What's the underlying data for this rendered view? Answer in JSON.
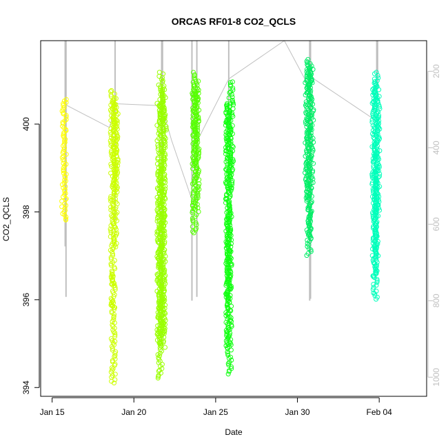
{
  "chart_data": {
    "type": "scatter",
    "title": "ORCAS RF01-8 CO2_QCLS",
    "xlabel": "Date",
    "ylabel": "CO2_QCLS",
    "x_ticks": [
      {
        "day": 15.0,
        "label": "Jan 15"
      },
      {
        "day": 20.0,
        "label": "Jan 20"
      },
      {
        "day": 25.0,
        "label": "Jan 25"
      },
      {
        "day": 30.0,
        "label": "Jan 30"
      },
      {
        "day": 35.0,
        "label": "Feb 04"
      }
    ],
    "xlim_day": [
      14.3,
      37.9
    ],
    "ylim": [
      393.8,
      401.9
    ],
    "y_ticks": [
      394,
      396,
      398,
      400
    ],
    "right_axis": {
      "color": "#bfbfbf",
      "ticks": [
        200,
        400,
        600,
        800,
        1000
      ],
      "ylim": [
        1050,
        120
      ],
      "reversed": true
    },
    "grid": false,
    "legend": "none",
    "series": [
      {
        "color": "#ffff00",
        "values": [
          [
            15.75,
            398.3,
            400.6
          ],
          [
            15.72,
            397.8,
            398.3
          ]
        ]
      },
      {
        "color": "#ccff00",
        "values": [
          [
            18.7,
            396.3,
            400.8
          ],
          [
            18.73,
            395.8,
            396.6
          ],
          [
            18.75,
            394.1,
            396.0
          ],
          [
            18.85,
            397.2,
            400.6
          ],
          [
            18.9,
            398.5,
            400.5
          ]
        ]
      },
      {
        "color": "#99ff00",
        "values": [
          [
            21.55,
            395.0,
            400.5
          ],
          [
            21.6,
            394.2,
            399.0
          ],
          [
            21.65,
            400.0,
            401.2
          ],
          [
            21.75,
            395.2,
            400.8
          ],
          [
            21.8,
            394.9,
            399.5
          ],
          [
            21.85,
            399.5,
            400.9
          ]
        ]
      },
      {
        "color": "#55ff00",
        "values": [
          [
            23.7,
            397.5,
            401.2
          ],
          [
            23.75,
            399.0,
            400.8
          ],
          [
            23.85,
            398.0,
            401.0
          ]
        ]
      },
      {
        "color": "#11ff11",
        "values": [
          [
            25.75,
            394.9,
            400.5
          ],
          [
            25.8,
            396.0,
            400.5
          ],
          [
            25.85,
            394.3,
            398.0
          ],
          [
            25.95,
            398.5,
            401.0
          ]
        ]
      },
      {
        "color": "#00ee66",
        "values": [
          [
            30.6,
            398.3,
            401.5
          ],
          [
            30.7,
            397.0,
            401.3
          ],
          [
            30.75,
            397.4,
            398.5
          ],
          [
            30.85,
            398.5,
            401.4
          ]
        ]
      },
      {
        "color": "#00ffbb",
        "values": [
          [
            34.7,
            396.5,
            401.0
          ],
          [
            34.75,
            396.0,
            399.0
          ],
          [
            34.8,
            397.0,
            401.2
          ],
          [
            34.9,
            398.0,
            400.8
          ]
        ]
      }
    ],
    "pressure_trace": {
      "color": "#bfbfbf",
      "points": [
        [
          15.8,
          287
        ],
        [
          18.5,
          347
        ],
        [
          18.9,
          285
        ],
        [
          21.7,
          290
        ],
        [
          22.3,
          380
        ],
        [
          23.5,
          530
        ],
        [
          23.9,
          380
        ],
        [
          25.8,
          220
        ],
        [
          29.2,
          100
        ],
        [
          30.7,
          240
        ],
        [
          30.9,
          217
        ],
        [
          34.7,
          326
        ]
      ],
      "columns": [
        [
          15.8,
          120,
          658
        ],
        [
          15.85,
          120,
          790
        ],
        [
          18.85,
          120,
          590
        ],
        [
          21.7,
          120,
          900
        ],
        [
          21.75,
          120,
          820
        ],
        [
          23.55,
          120,
          800
        ],
        [
          23.85,
          120,
          790
        ],
        [
          25.8,
          120,
          350
        ],
        [
          30.75,
          120,
          800
        ],
        [
          30.8,
          120,
          795
        ],
        [
          34.85,
          120,
          270
        ],
        [
          34.9,
          120,
          240
        ]
      ]
    }
  }
}
